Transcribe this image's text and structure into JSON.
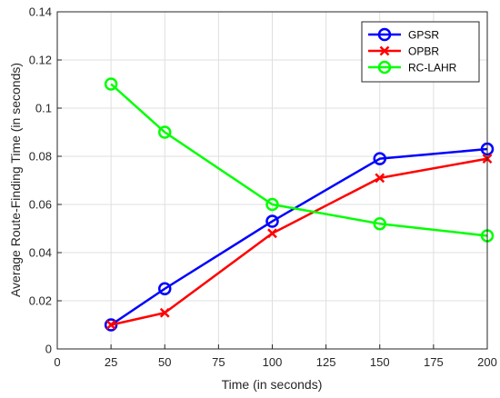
{
  "chart_data": {
    "type": "line",
    "title": "",
    "xlabel": "Time (in seconds)",
    "ylabel": "Average Route-Finding Time (in seconds)",
    "xlim": [
      0,
      200
    ],
    "ylim": [
      0,
      0.14
    ],
    "x_ticks": [
      "0",
      "25",
      "50",
      "75",
      "100",
      "125",
      "150",
      "175",
      "200"
    ],
    "y_ticks": [
      "0",
      "0.02",
      "0.04",
      "0.06",
      "0.08",
      "0.1",
      "0.12",
      "0.14"
    ],
    "grid": true,
    "legend_position": "top-right",
    "x": [
      25,
      50,
      100,
      150,
      200
    ],
    "series": [
      {
        "name": "GPSR",
        "values": [
          0.01,
          0.025,
          0.053,
          0.079,
          0.083
        ],
        "color": "#0000ff",
        "marker": "circle"
      },
      {
        "name": "OPBR",
        "values": [
          0.01,
          0.015,
          0.048,
          0.071,
          0.079
        ],
        "color": "#ff0000",
        "marker": "x"
      },
      {
        "name": "RC-LAHR",
        "values": [
          0.11,
          0.09,
          0.06,
          0.052,
          0.047
        ],
        "color": "#00ff00",
        "marker": "circle"
      }
    ]
  }
}
